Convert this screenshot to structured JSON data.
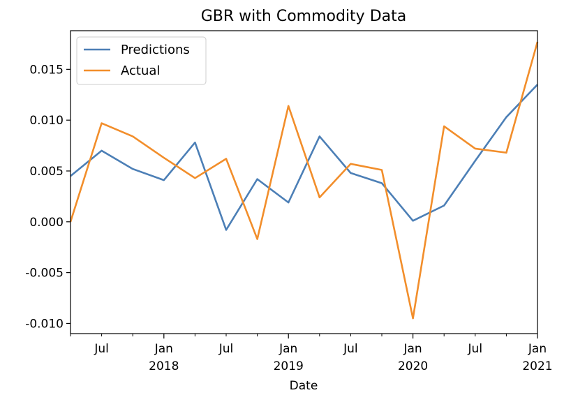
{
  "chart_data": {
    "type": "line",
    "title": "GBR with Commodity Data",
    "xlabel": "Date",
    "ylabel": "",
    "x": [
      "2017-04",
      "2017-07",
      "2017-10",
      "2018-01",
      "2018-04",
      "2018-07",
      "2018-10",
      "2019-01",
      "2019-04",
      "2019-07",
      "2019-10",
      "2020-01",
      "2020-04",
      "2020-07",
      "2020-10",
      "2021-01"
    ],
    "ylim": [
      -0.011,
      0.0188
    ],
    "xlim": [
      "2017-04",
      "2021-01"
    ],
    "grid": false,
    "legend_position": "upper left",
    "series": [
      {
        "name": "Predictions",
        "color": "#4c7fb6",
        "values": [
          0.0045,
          0.007,
          0.0052,
          0.0041,
          0.0078,
          -0.0008,
          0.0042,
          0.0019,
          0.0084,
          0.0048,
          0.0038,
          0.0001,
          0.0016,
          0.006,
          0.0103,
          0.0135
        ]
      },
      {
        "name": "Actual",
        "color": "#f28e2b",
        "values": [
          0.0,
          0.0097,
          0.0084,
          0.0063,
          0.0043,
          0.0062,
          -0.0017,
          0.0114,
          0.0024,
          0.0057,
          0.0051,
          -0.0095,
          0.0094,
          0.0072,
          0.0068,
          0.0177
        ]
      }
    ],
    "y_ticks": [
      {
        "value": 0.015,
        "label": "0.015"
      },
      {
        "value": 0.01,
        "label": "0.010"
      },
      {
        "value": 0.005,
        "label": "0.005"
      },
      {
        "value": 0.0,
        "label": "0.000"
      },
      {
        "value": -0.005,
        "label": "-0.005"
      },
      {
        "value": -0.01,
        "label": "-0.010"
      }
    ],
    "x_major_ticks": [
      {
        "date": "2018-01",
        "label": "Jan",
        "year": "2018"
      },
      {
        "date": "2019-01",
        "label": "Jan",
        "year": "2019"
      },
      {
        "date": "2020-01",
        "label": "Jan",
        "year": "2020"
      },
      {
        "date": "2021-01",
        "label": "Jan",
        "year": "2021"
      }
    ],
    "x_minor_ticks": [
      {
        "date": "2017-07",
        "label": "Jul"
      },
      {
        "date": "2018-07",
        "label": "Jul"
      },
      {
        "date": "2019-07",
        "label": "Jul"
      },
      {
        "date": "2020-07",
        "label": "Jul"
      }
    ],
    "x_unlabeled_ticks": [
      "2017-04",
      "2017-10",
      "2018-04",
      "2018-10",
      "2019-04",
      "2019-10",
      "2020-04",
      "2020-10"
    ]
  }
}
